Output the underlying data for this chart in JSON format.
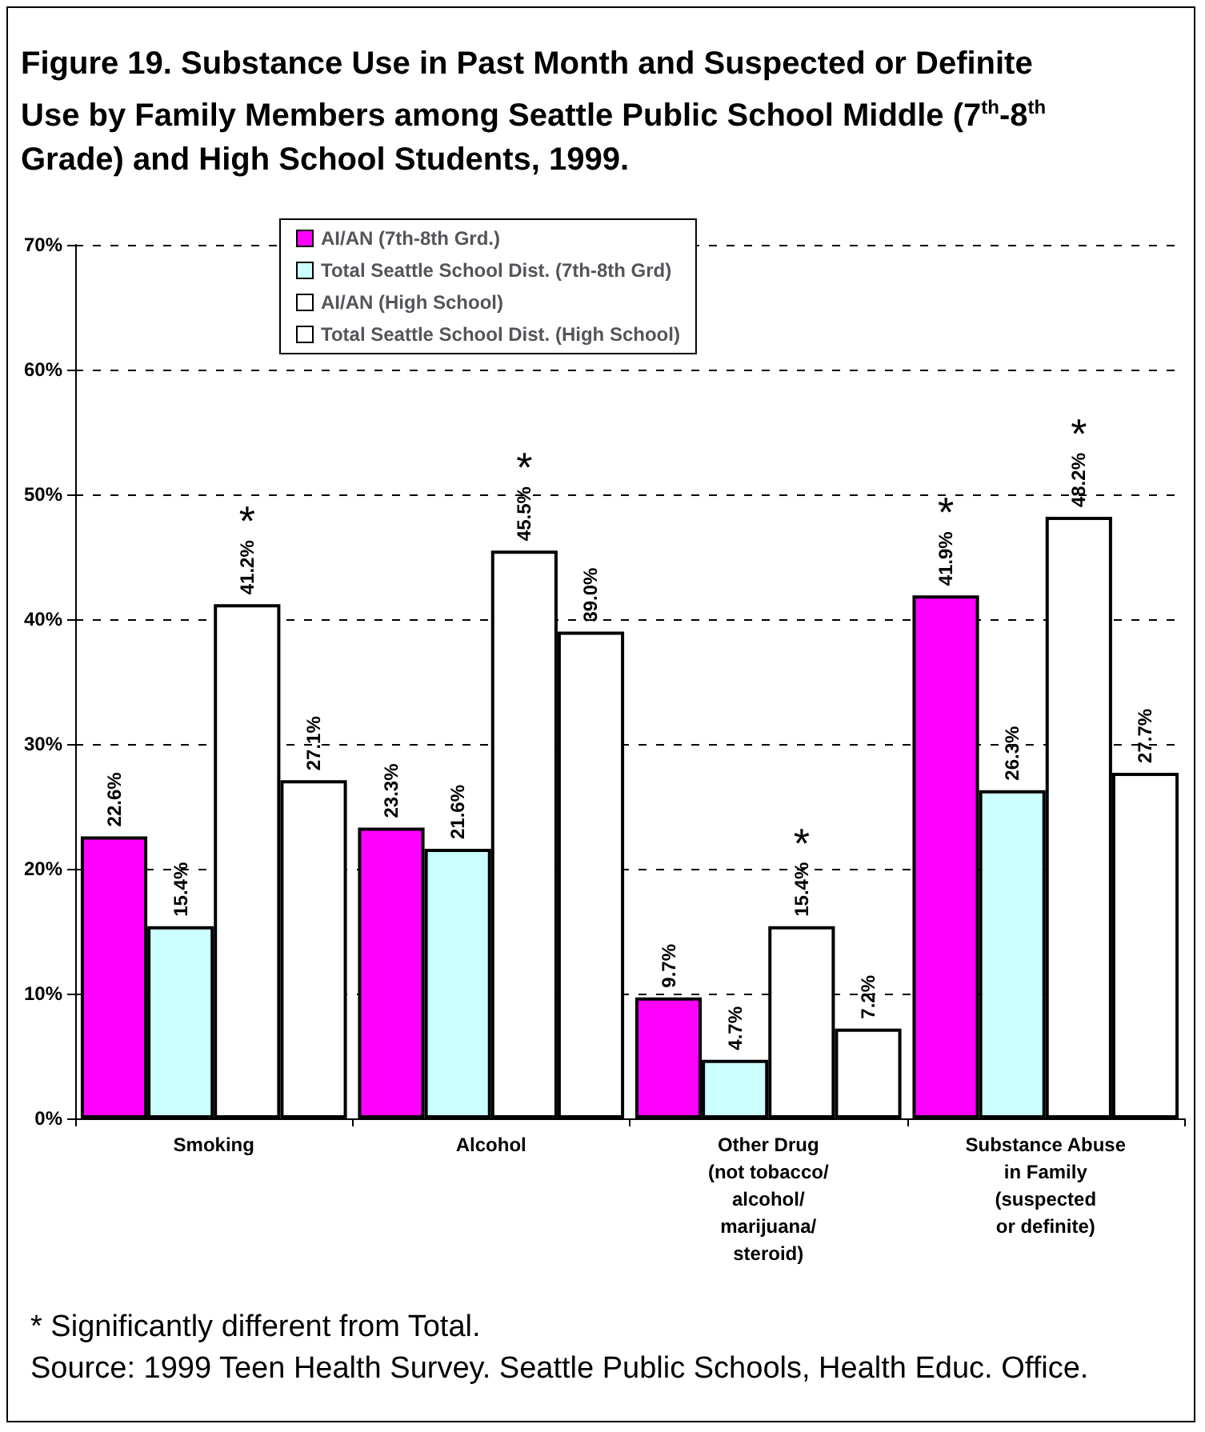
{
  "chart_data": {
    "type": "bar",
    "title": "Figure 19. Substance Use in Past Month and Suspected or Definite Use by Family Members among Seattle Public School Middle (7$^{th}$-8$^{th}$ Grade) and High School Students, 1999.",
    "categories": [
      "Smoking",
      "Alcohol",
      "Other Drug\n(not tobacco/\nalcohol/\nmarijuana/\nsteroid)",
      "Substance Abuse\nin Family\n(suspected\nor definite)"
    ],
    "series": [
      {
        "name": "AI/AN (7th-8th Grd.)",
        "color": "#ff00ff",
        "values": [
          22.6,
          23.3,
          9.7,
          41.9
        ],
        "value_labels": [
          "22.6%",
          "23.3%",
          "9.7%",
          "41.9%"
        ]
      },
      {
        "name": "Total Seattle School Dist. (7th-8th Grd)",
        "color": "#ccffff",
        "values": [
          15.4,
          21.6,
          4.7,
          26.3
        ],
        "value_labels": [
          "15.4%",
          "21.6%",
          "4.7%",
          "26.3%"
        ]
      },
      {
        "name": "AI/AN (High School)",
        "color": "#ffffff",
        "values": [
          41.2,
          45.5,
          15.4,
          48.2
        ],
        "value_labels": [
          "41.2%",
          "45.5%",
          "15.4%",
          "48.2%"
        ]
      },
      {
        "name": "Total Seattle School Dist. (High School)",
        "color": "#ffffff",
        "values": [
          27.1,
          39.0,
          7.2,
          27.7
        ],
        "value_labels": [
          "27.1%",
          "39.0%",
          "7.2%",
          "27.7%"
        ]
      }
    ],
    "ylim": [
      0,
      70
    ],
    "yticks": [
      {
        "value": 0,
        "label": "0%"
      },
      {
        "value": 10,
        "label": "10%"
      },
      {
        "value": 20,
        "label": "20%"
      },
      {
        "value": 30,
        "label": "30%"
      },
      {
        "value": 40,
        "label": "40%"
      },
      {
        "value": 50,
        "label": "50%"
      },
      {
        "value": 60,
        "label": "60%"
      },
      {
        "value": 70,
        "label": "70%"
      }
    ],
    "grid": "y",
    "legend": "top",
    "annotations": [
      {
        "text": "*",
        "x": "Smoking",
        "y": 41.2
      },
      {
        "text": "*",
        "x": "Alcohol",
        "y": 45.5
      },
      {
        "text": "*",
        "x": "Other Drug\n(not tobacco/\nalcohol/\nmarijuana/\nsteroid)",
        "y": 15.4
      },
      {
        "text": "*",
        "x": "Substance Abuse\nin Family\n(suspected\nor definite)",
        "y": 41.9
      },
      {
        "text": "*",
        "x": "Substance Abuse\nin Family\n(suspected\nor definite)",
        "y": 48.2
      },
      "* Significantly different from Total.",
      "Source: 1999 Teen Health Survey. Seattle Public Schools, Health Educ. Office."
    ]
  }
}
